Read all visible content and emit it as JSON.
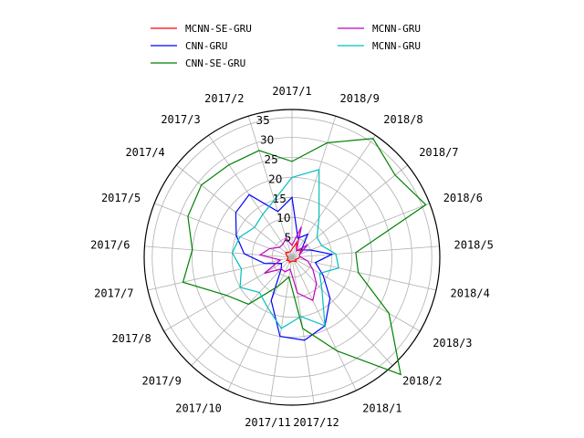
{
  "chart_data": {
    "type": "radar",
    "categories": [
      "2017/1",
      "2017/2",
      "2017/3",
      "2017/4",
      "2017/5",
      "2017/6",
      "2017/7",
      "2017/8",
      "2017/9",
      "2017/10",
      "2017/11",
      "2017/12",
      "2018/1",
      "2018/2",
      "2018/3",
      "2018/4",
      "2018/5",
      "2018/6",
      "2018/7",
      "2018/8",
      "2018/9"
    ],
    "order": [
      "2017/1",
      "2018/9",
      "2018/8",
      "2018/7",
      "2018/6",
      "2018/5",
      "2018/4",
      "2018/3",
      "2018/2",
      "2018/1",
      "2017/12",
      "2017/11",
      "2017/10",
      "2017/9",
      "2017/8",
      "2017/7",
      "2017/6",
      "2017/5",
      "2017/4",
      "2017/3",
      "2017/2"
    ],
    "rticks": [
      5,
      10,
      15,
      20,
      25,
      30,
      35
    ],
    "rlim": [
      0,
      37
    ],
    "grid": true,
    "legend": "top",
    "series": [
      {
        "name": "MCNN-SE-GRU",
        "color": "#ff0000",
        "values": [
          2,
          1.5,
          1.5,
          2,
          1.5,
          1,
          1,
          1.5,
          1,
          1.5,
          1,
          1,
          1,
          1.5,
          1,
          1.5,
          2,
          2,
          3,
          2,
          4
        ]
      },
      {
        "name": "CNN-GRU",
        "color": "#0000ff",
        "values": [
          15,
          12,
          19,
          18,
          15,
          12,
          7,
          3,
          4,
          12,
          20,
          21,
          19,
          14,
          9,
          6,
          10,
          5,
          3,
          7,
          5
        ]
      },
      {
        "name": "CNN-SE-GRU",
        "color": "#008000",
        "values": [
          24,
          28,
          28,
          29,
          28,
          25,
          28,
          19,
          16,
          8,
          5,
          18,
          26,
          40,
          28,
          17,
          16,
          36,
          33,
          36,
          30
        ]
      },
      {
        "name": "MCNN-GRU",
        "color": "#bf00bf",
        "values": [
          3,
          5,
          4,
          4,
          6,
          8,
          3,
          8,
          4,
          4,
          3,
          9,
          12,
          9,
          6,
          4,
          2,
          2,
          5,
          2,
          8
        ]
      },
      {
        "name": "MCNN-GRU",
        "color": "#00bfbf",
        "values": [
          20,
          15,
          13,
          12,
          14,
          15,
          13,
          15,
          12,
          14,
          18,
          15,
          19,
          11,
          8,
          12,
          11,
          8,
          8,
          12,
          23
        ]
      }
    ]
  }
}
